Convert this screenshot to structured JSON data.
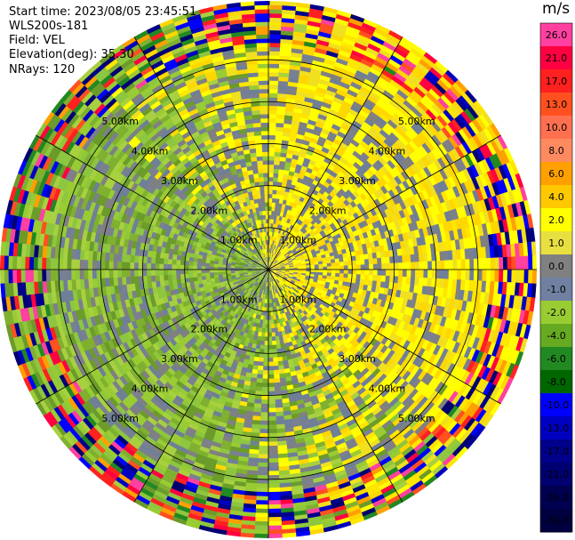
{
  "header": {
    "start_time": "Start time: 2023/08/05 23:45:51",
    "instrument": "WLS200s-181",
    "field": "Field: VEL",
    "elevation": "Elevation(deg): 35.30",
    "nrays": "NRays: 120"
  },
  "chart_data": {
    "type": "heatmap",
    "projection": "polar-ppi",
    "nrays": 120,
    "range_rings_km": [
      1,
      2,
      3,
      4,
      5
    ],
    "max_range_km": 6.4,
    "ring_labels": [
      "1.00km",
      "2.00km",
      "3.00km",
      "4.00km",
      "5.00km"
    ],
    "spokes_deg": [
      0,
      30,
      60,
      90,
      120,
      150,
      180,
      210,
      240,
      270,
      300,
      330
    ],
    "pattern_summary": "Positive velocities (yellow, about +2 to +4 m/s) dominate the north-east and east sectors; negative velocities (green, about -2 to -4 m/s) dominate the west and south-west sectors; near-zero (grey) cells scattered throughout; noisy multicolour values in outer gates.",
    "colorbar": {
      "unit": "m/s",
      "ticks": [
        "26.0",
        "21.0",
        "17.0",
        "13.0",
        "10.0",
        "8.0",
        "6.0",
        "4.0",
        "2.0",
        "1.0",
        "0.0",
        "-1.0",
        "-2.0",
        "-4.0",
        "-6.0",
        "-8.0",
        "-10.0",
        "-13.0",
        "-17.0",
        "-21.0",
        "-26.0",
        "-30.0"
      ],
      "colors": [
        "#ff40a0",
        "#ff0040",
        "#ff2020",
        "#ff5020",
        "#ff7050",
        "#ff8a60",
        "#ffa000",
        "#ffc800",
        "#ffff00",
        "#e8e040",
        "#808080",
        "#7080a0",
        "#99cc33",
        "#66aa22",
        "#228822",
        "#006600",
        "#0000ff",
        "#0000c0",
        "#00008a",
        "#000070",
        "#000050",
        "#000040"
      ]
    }
  }
}
